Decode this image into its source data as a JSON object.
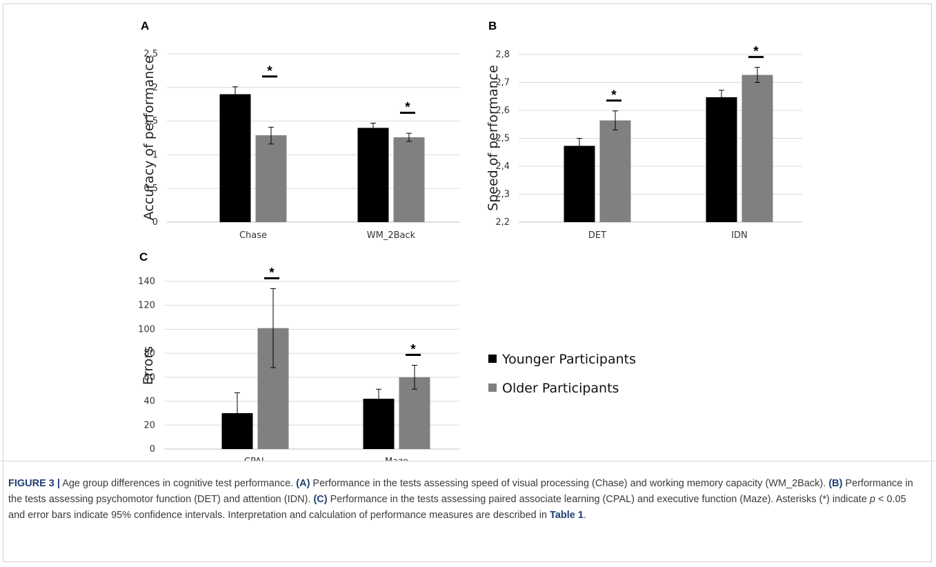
{
  "chart_data": [
    {
      "panel": "A",
      "type": "bar",
      "categories": [
        "Chase",
        "WM_2Back"
      ],
      "ylabel": "Accuracy of performance",
      "xlabel": "",
      "ylim": [
        0,
        2.5
      ],
      "yticks": [
        "0",
        "0,5",
        "1",
        "1,5",
        "2",
        "2,5"
      ],
      "ytick_values": [
        0,
        0.5,
        1,
        1.5,
        2,
        2.5
      ],
      "series": [
        {
          "name": "Younger Participants",
          "values": [
            1.9,
            1.4
          ],
          "err_low": [
            1.78,
            1.33
          ],
          "err_high": [
            2.01,
            1.47
          ]
        },
        {
          "name": "Older Participants",
          "values": [
            1.29,
            1.26
          ],
          "err_low": [
            1.16,
            1.2
          ],
          "err_high": [
            1.41,
            1.32
          ]
        }
      ],
      "significance": [
        "*",
        "*"
      ],
      "grid": true
    },
    {
      "panel": "B",
      "type": "bar",
      "categories": [
        "DET",
        "IDN"
      ],
      "ylabel": "Speed  of performance",
      "xlabel": "",
      "ylim": [
        2.2,
        2.8
      ],
      "yticks": [
        "2,2",
        "2,3",
        "2,4",
        "2,5",
        "2,6",
        "2,7",
        "2,8"
      ],
      "ytick_values": [
        2.2,
        2.3,
        2.4,
        2.5,
        2.6,
        2.7,
        2.8
      ],
      "series": [
        {
          "name": "Younger Participants",
          "values": [
            2.473,
            2.647
          ],
          "err_low": [
            2.445,
            2.622
          ],
          "err_high": [
            2.5,
            2.672
          ]
        },
        {
          "name": "Older Participants",
          "values": [
            2.564,
            2.727
          ],
          "err_low": [
            2.53,
            2.7
          ],
          "err_high": [
            2.598,
            2.754
          ]
        }
      ],
      "significance": [
        "*",
        "*"
      ],
      "grid": true
    },
    {
      "panel": "C",
      "type": "bar",
      "categories": [
        "CPAL",
        "Maze"
      ],
      "ylabel": "Errors",
      "xlabel": "",
      "ylim": [
        0,
        140
      ],
      "yticks": [
        "0",
        "20",
        "40",
        "60",
        "80",
        "100",
        "120",
        "140"
      ],
      "ytick_values": [
        0,
        20,
        40,
        60,
        80,
        100,
        120,
        140
      ],
      "series": [
        {
          "name": "Younger Participants",
          "values": [
            30,
            42
          ],
          "err_low": [
            13,
            34
          ],
          "err_high": [
            47,
            50
          ]
        },
        {
          "name": "Older Participants",
          "values": [
            101,
            60
          ],
          "err_low": [
            68,
            50
          ],
          "err_high": [
            134,
            70
          ]
        }
      ],
      "significance": [
        "*",
        "*"
      ],
      "grid": true
    }
  ],
  "legend": {
    "placement": "right of panel C",
    "items": [
      {
        "label": "Younger Participants",
        "color": "#000000"
      },
      {
        "label": "Older Participants",
        "color": "#808080"
      }
    ]
  },
  "colors": {
    "younger": "#000000",
    "older": "#808080",
    "grid": "#d9d9d9",
    "caption_accent": "#1f3f73"
  },
  "caption": {
    "label": "FIGURE 3 |",
    "intro": " Age group differences in cognitive test performance. ",
    "a_label": "(A)",
    "a_text": " Performance in the tests assessing speed of visual processing (Chase) and working memory capacity (WM_2Back). ",
    "b_label": "(B)",
    "b_text": " Performance in the tests assessing psychomotor function (DET) and attention (IDN). ",
    "c_label": "(C)",
    "c_text": " Performance in the tests assessing paired associate learning (CPAL) and executive function (Maze). Asterisks (*) indicate ",
    "p_symbol": "p",
    "p_text": " < 0.05 and error bars indicate 95% confidence intervals. Interpretation and calculation of performance measures are described in ",
    "table_ref": "Table 1",
    "end": "."
  }
}
